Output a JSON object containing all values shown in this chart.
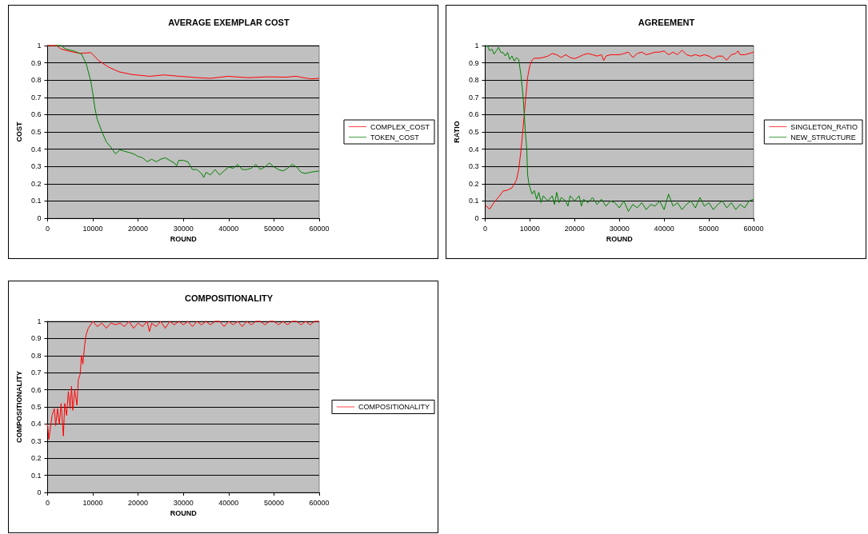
{
  "chart_data": [
    {
      "type": "line",
      "title": "AVERAGE EXEMPLAR COST",
      "xlabel": "ROUND",
      "ylabel": "COST",
      "xlim": [
        0,
        60000
      ],
      "xticks": [
        0,
        10000,
        20000,
        30000,
        40000,
        50000,
        60000
      ],
      "ylim": [
        0,
        1
      ],
      "yticks": [
        0,
        0.1,
        0.2,
        0.3,
        0.4,
        0.5,
        0.6,
        0.7,
        0.8,
        0.9,
        1
      ],
      "grid": "y",
      "legend": "right",
      "marker": "none",
      "line_style": "solid",
      "series": [
        {
          "name": "COMPLEX_COST",
          "color": "#ff0000",
          "x": [
            0,
            2000,
            3000,
            5000,
            7000,
            9600,
            11300,
            13500,
            15800,
            18500,
            22500,
            25800,
            29200,
            33100,
            35900,
            39900,
            44200,
            48700,
            52600,
            54900,
            56500,
            58200,
            60000
          ],
          "values": [
            1,
            1,
            0.98,
            0.966,
            0.955,
            0.959,
            0.913,
            0.875,
            0.848,
            0.833,
            0.822,
            0.83,
            0.822,
            0.814,
            0.81,
            0.822,
            0.814,
            0.819,
            0.817,
            0.822,
            0.814,
            0.807,
            0.81
          ]
        },
        {
          "name": "TOKEN_COST",
          "color": "#008000",
          "x": [
            1800,
            3000,
            4000,
            6000,
            7500,
            8500,
            9500,
            10000,
            10500,
            11000,
            12000,
            13000,
            14000,
            15000,
            16000,
            17000,
            18000,
            19000,
            20000,
            21000,
            22000,
            23000,
            24000,
            25000,
            26000,
            27000,
            28000,
            28500,
            29000,
            30000,
            31000,
            32000,
            33000,
            34000,
            34500,
            35000,
            36000,
            37000,
            38000,
            39000,
            40000,
            41000,
            42000,
            43000,
            44000,
            45000,
            46000,
            47000,
            48000,
            49000,
            50000,
            51000,
            52000,
            53000,
            54000,
            55000,
            56000,
            57000,
            58000,
            60000
          ],
          "values": [
            1,
            1,
            0.98,
            0.967,
            0.951,
            0.898,
            0.8,
            0.723,
            0.632,
            0.571,
            0.502,
            0.441,
            0.411,
            0.373,
            0.396,
            0.388,
            0.381,
            0.373,
            0.358,
            0.35,
            0.327,
            0.342,
            0.327,
            0.342,
            0.35,
            0.335,
            0.32,
            0.304,
            0.335,
            0.335,
            0.327,
            0.282,
            0.282,
            0.259,
            0.236,
            0.266,
            0.251,
            0.282,
            0.251,
            0.274,
            0.297,
            0.289,
            0.312,
            0.282,
            0.282,
            0.289,
            0.312,
            0.282,
            0.297,
            0.32,
            0.297,
            0.282,
            0.274,
            0.289,
            0.312,
            0.297,
            0.266,
            0.259,
            0.266,
            0.274
          ]
        }
      ]
    },
    {
      "type": "line",
      "title": "AGREEMENT",
      "xlabel": "ROUND",
      "ylabel": "RATIO",
      "xlim": [
        0,
        60000
      ],
      "xticks": [
        0,
        10000,
        20000,
        30000,
        40000,
        50000,
        60000
      ],
      "ylim": [
        0,
        1
      ],
      "yticks": [
        0,
        0.1,
        0.2,
        0.3,
        0.4,
        0.5,
        0.6,
        0.7,
        0.8,
        0.9,
        1
      ],
      "grid": "y",
      "legend": "right",
      "marker": "none",
      "line_style": "solid",
      "series": [
        {
          "name": "SINGLETON_RATIO",
          "color": "#ff0000",
          "x": [
            0,
            1000,
            2000,
            3000,
            4000,
            5000,
            6000,
            7000,
            7500,
            8000,
            8500,
            9000,
            9500,
            10000,
            10500,
            11000,
            12000,
            13000,
            14000,
            15000,
            16000,
            17000,
            18000,
            19000,
            20000,
            21000,
            22000,
            23000,
            24000,
            25000,
            26000,
            26500,
            27000,
            28000,
            29000,
            30000,
            31000,
            32000,
            33000,
            34000,
            35000,
            36000,
            37000,
            38000,
            39000,
            40000,
            41000,
            42000,
            43000,
            44000,
            45000,
            46000,
            47000,
            48000,
            49000,
            50000,
            51000,
            52000,
            53000,
            54000,
            55000,
            56000,
            56500,
            57000,
            58000,
            59000,
            60000
          ],
          "values": [
            0.076,
            0.053,
            0.092,
            0.122,
            0.157,
            0.163,
            0.176,
            0.221,
            0.282,
            0.389,
            0.527,
            0.679,
            0.817,
            0.885,
            0.916,
            0.927,
            0.927,
            0.931,
            0.939,
            0.954,
            0.947,
            0.931,
            0.947,
            0.931,
            0.924,
            0.935,
            0.947,
            0.954,
            0.947,
            0.939,
            0.947,
            0.913,
            0.939,
            0.947,
            0.947,
            0.947,
            0.954,
            0.962,
            0.931,
            0.954,
            0.962,
            0.947,
            0.954,
            0.962,
            0.962,
            0.969,
            0.947,
            0.962,
            0.947,
            0.973,
            0.947,
            0.939,
            0.947,
            0.939,
            0.947,
            0.939,
            0.924,
            0.939,
            0.939,
            0.916,
            0.947,
            0.954,
            0.969,
            0.947,
            0.947,
            0.954,
            0.962
          ]
        },
        {
          "name": "NEW_STRUCTURE",
          "color": "#008000",
          "x": [
            0,
            500,
            1000,
            1500,
            2000,
            2500,
            3000,
            3500,
            4000,
            4500,
            5000,
            5500,
            6000,
            6500,
            7000,
            7500,
            8000,
            8500,
            9000,
            9300,
            9500,
            9800,
            10000,
            10500,
            11000,
            11500,
            12000,
            12500,
            13000,
            14000,
            15000,
            15500,
            16000,
            16500,
            17000,
            18000,
            18500,
            19000,
            20000,
            21000,
            21500,
            22000,
            23000,
            24000,
            25000,
            26000,
            27000,
            28000,
            29000,
            30000,
            31000,
            32000,
            33000,
            34000,
            35000,
            36000,
            37000,
            38000,
            39000,
            40000,
            41000,
            42000,
            43000,
            44000,
            45000,
            46000,
            47000,
            48000,
            49000,
            50000,
            51000,
            52000,
            53000,
            54000,
            55000,
            56000,
            57000,
            58000,
            59000,
            60000
          ],
          "values": [
            0.99,
            1,
            0.97,
            0.98,
            0.95,
            0.97,
            0.99,
            0.96,
            0.96,
            0.94,
            0.96,
            0.92,
            0.94,
            0.91,
            0.93,
            0.92,
            0.83,
            0.7,
            0.5,
            0.4,
            0.25,
            0.2,
            0.18,
            0.14,
            0.16,
            0.11,
            0.15,
            0.09,
            0.13,
            0.1,
            0.13,
            0.08,
            0.15,
            0.09,
            0.12,
            0.1,
            0.07,
            0.13,
            0.1,
            0.13,
            0.07,
            0.11,
            0.09,
            0.12,
            0.08,
            0.11,
            0.07,
            0.1,
            0.09,
            0.06,
            0.1,
            0.04,
            0.08,
            0.06,
            0.09,
            0.05,
            0.08,
            0.07,
            0.1,
            0.05,
            0.14,
            0.07,
            0.09,
            0.05,
            0.08,
            0.1,
            0.06,
            0.12,
            0.07,
            0.09,
            0.05,
            0.08,
            0.1,
            0.06,
            0.09,
            0.05,
            0.08,
            0.06,
            0.1,
            0.11
          ]
        }
      ]
    },
    {
      "type": "line",
      "title": "COMPOSITIONALITY",
      "xlabel": "ROUND",
      "ylabel": "COMPOSITIONALITY",
      "xlim": [
        0,
        60000
      ],
      "xticks": [
        0,
        10000,
        20000,
        30000,
        40000,
        50000,
        60000
      ],
      "ylim": [
        0,
        1
      ],
      "yticks": [
        0,
        0.1,
        0.2,
        0.3,
        0.4,
        0.5,
        0.6,
        0.7,
        0.8,
        0.9,
        1
      ],
      "grid": "y",
      "legend": "right",
      "marker": "none",
      "line_style": "solid",
      "series": [
        {
          "name": "COMPOSITIONALITY",
          "color": "#ff0000",
          "x": [
            0,
            300,
            600,
            1000,
            1500,
            1800,
            2200,
            2600,
            3000,
            3500,
            3800,
            4200,
            4600,
            5000,
            5300,
            5600,
            6000,
            6500,
            6800,
            7200,
            7500,
            7800,
            8200,
            8500,
            9000,
            9500,
            10000,
            11000,
            12000,
            13000,
            14000,
            15000,
            16000,
            17000,
            18000,
            19000,
            20000,
            21000,
            22000,
            22500,
            23000,
            24000,
            25000,
            26000,
            27000,
            28000,
            29000,
            30000,
            31000,
            32000,
            33000,
            34000,
            35000,
            36000,
            37000,
            38000,
            39000,
            40000,
            41000,
            42000,
            43000,
            44000,
            45000,
            46000,
            47000,
            48000,
            49000,
            50000,
            51000,
            52000,
            53000,
            54000,
            55000,
            56000,
            57000,
            58000,
            59000,
            60000
          ],
          "values": [
            0.4,
            0.31,
            0.37,
            0.45,
            0.49,
            0.39,
            0.49,
            0.4,
            0.52,
            0.33,
            0.52,
            0.45,
            0.59,
            0.49,
            0.62,
            0.48,
            0.6,
            0.51,
            0.66,
            0.69,
            0.8,
            0.75,
            0.86,
            0.92,
            0.96,
            0.98,
            1,
            0.97,
            0.99,
            0.96,
            0.99,
            0.98,
            0.99,
            0.97,
            1,
            0.96,
            0.99,
            0.97,
            1,
            0.94,
            0.99,
            0.97,
            1,
            0.96,
            1,
            0.98,
            1,
            0.98,
            1,
            0.97,
            1,
            0.98,
            1,
            0.98,
            1,
            1,
            0.97,
            1,
            0.98,
            1,
            0.97,
            1,
            0.98,
            1,
            1,
            0.98,
            1,
            1,
            0.98,
            1,
            0.98,
            1,
            1,
            0.98,
            1,
            0.98,
            1,
            1
          ]
        }
      ]
    }
  ]
}
